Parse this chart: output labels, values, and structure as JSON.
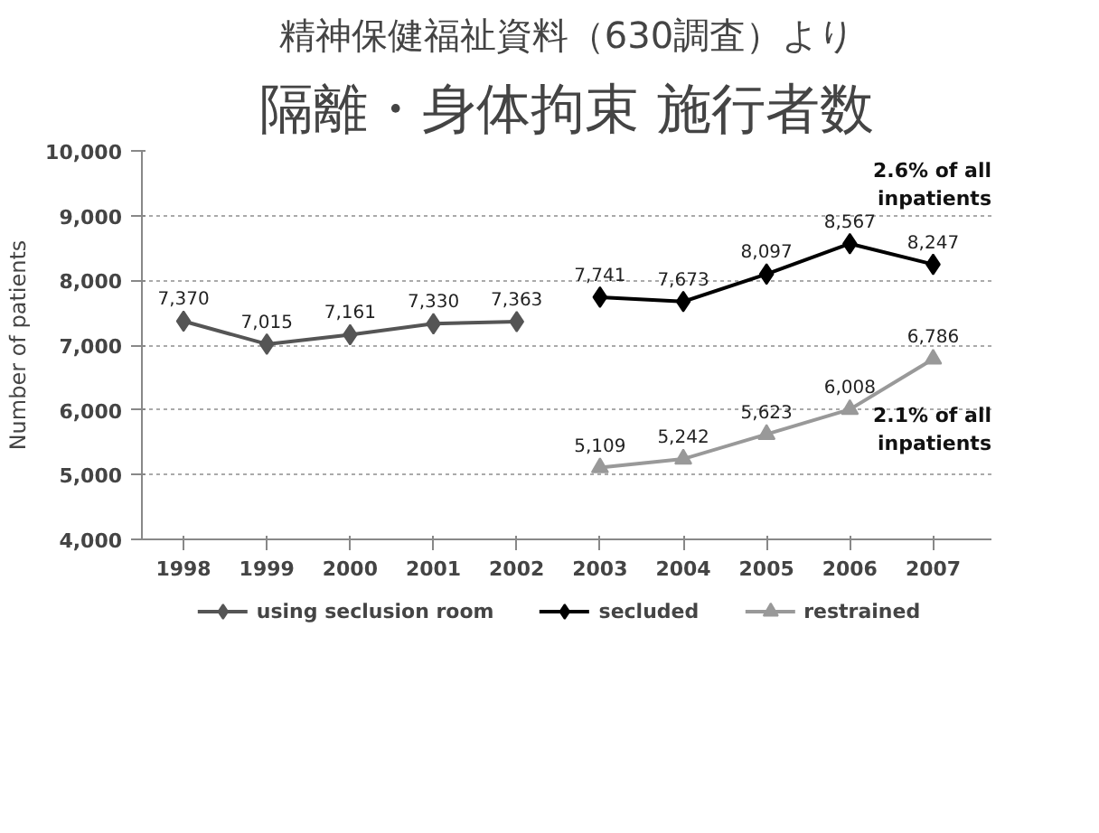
{
  "chart_data": {
    "type": "line",
    "subtitle": "精神保健福祉資料（630調査）より",
    "title": "隔離・身体拘束 施行者数",
    "ylabel": "Number of patients",
    "categories": [
      "1998",
      "1999",
      "2000",
      "2001",
      "2002",
      "2003",
      "2004",
      "2005",
      "2006",
      "2007"
    ],
    "series": [
      {
        "name": "using seclusion room",
        "color": "#555555",
        "marker": "diamond",
        "values": [
          7370,
          7015,
          7161,
          7330,
          7363,
          null,
          null,
          null,
          null,
          null
        ],
        "value_labels": [
          "7,370",
          "7,015",
          "7,161",
          "7,330",
          "7,363",
          null,
          null,
          null,
          null,
          null
        ]
      },
      {
        "name": "secluded",
        "color": "#000000",
        "marker": "diamond",
        "values": [
          null,
          null,
          null,
          null,
          null,
          7741,
          7673,
          8097,
          8567,
          8247
        ],
        "value_labels": [
          null,
          null,
          null,
          null,
          null,
          "7,741",
          "7,673",
          "8,097",
          "8,567",
          "8,247"
        ]
      },
      {
        "name": "restrained",
        "color": "#999999",
        "marker": "triangle",
        "values": [
          null,
          null,
          null,
          null,
          null,
          5109,
          5242,
          5623,
          6008,
          6786
        ],
        "value_labels": [
          null,
          null,
          null,
          null,
          null,
          "5,109",
          "5,242",
          "5,623",
          "6,008",
          "6,786"
        ]
      }
    ],
    "ylim": [
      4000,
      10000
    ],
    "yticks": [
      {
        "value": 4000,
        "label": "4,000"
      },
      {
        "value": 5000,
        "label": "5,000"
      },
      {
        "value": 6000,
        "label": "6,000"
      },
      {
        "value": 7000,
        "label": "7,000"
      },
      {
        "value": 8000,
        "label": "8,000"
      },
      {
        "value": 9000,
        "label": "9,000"
      },
      {
        "value": 10000,
        "label": "10,000"
      }
    ],
    "grid": "y",
    "legend": "bottom",
    "annotations": [
      "2.6% of all\ninpatients",
      "2.1% of all\ninpatients"
    ]
  }
}
